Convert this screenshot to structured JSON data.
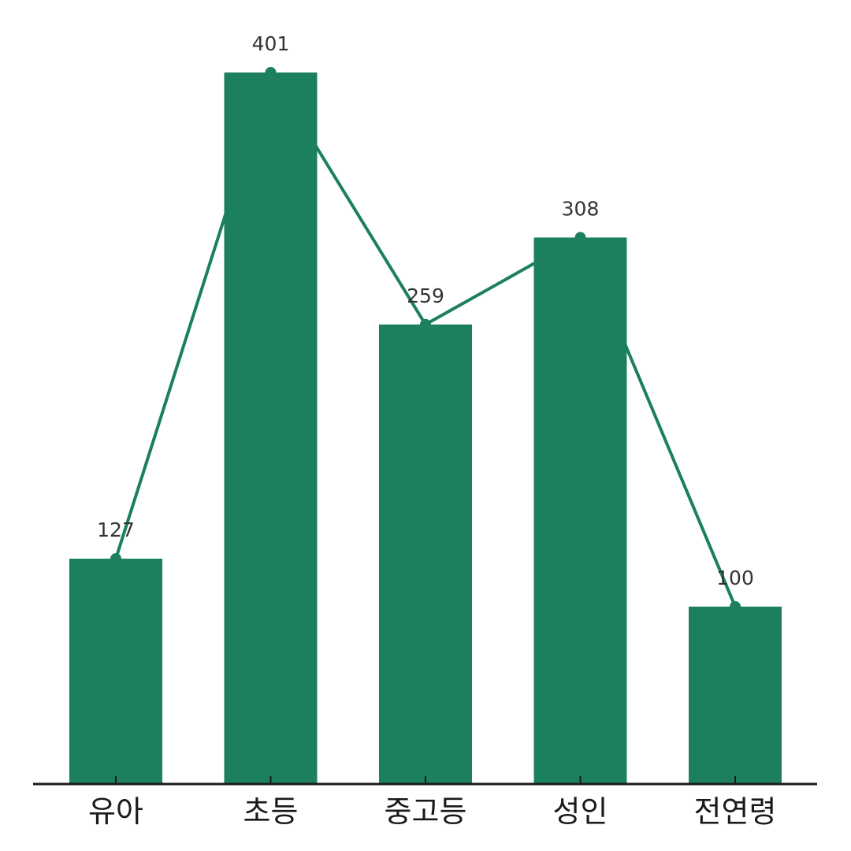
{
  "chart_data": {
    "type": "bar",
    "categories": [
      "유아",
      "초등",
      "중고등",
      "성인",
      "전연령"
    ],
    "values": [
      127,
      401,
      259,
      308,
      100
    ],
    "overlay": "line",
    "ylim": [
      0,
      401
    ],
    "grid": false,
    "legend": "none",
    "title": "",
    "xlabel": "",
    "ylabel": "",
    "colors": {
      "bar": "#1c805c",
      "line": "#1c805c",
      "axis": "#1a1a1a"
    }
  }
}
